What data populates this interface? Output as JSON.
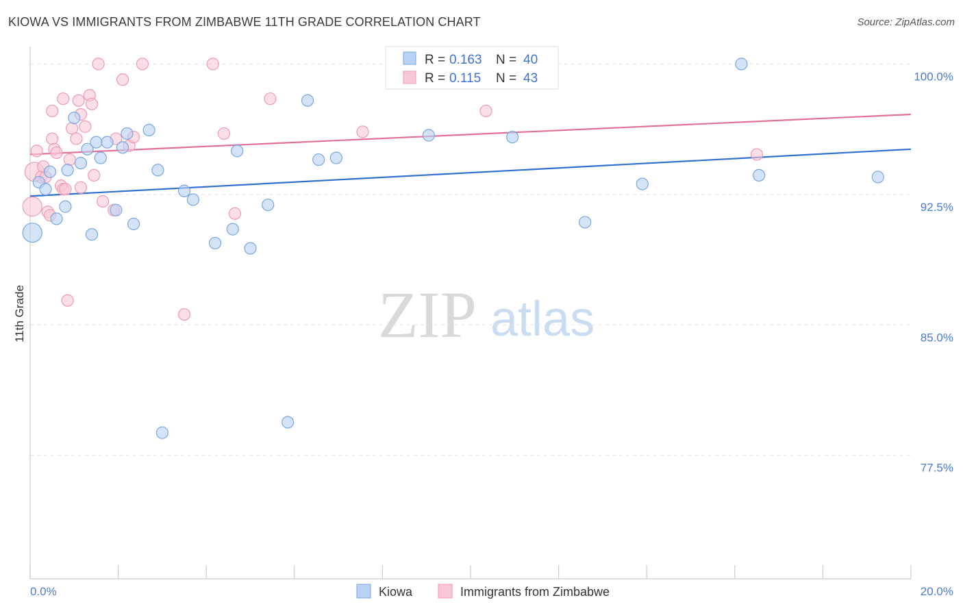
{
  "header": {
    "title": "KIOWA VS IMMIGRANTS FROM ZIMBABWE 11TH GRADE CORRELATION CHART",
    "source": "Source: ZipAtlas.com"
  },
  "watermark": {
    "zip": "ZIP",
    "atlas": "atlas"
  },
  "colors": {
    "kiowa_fill": "#b9d1f2",
    "kiowa_stroke": "#7aa6e0",
    "kiowa_line": "#2f6fcf",
    "zim_fill": "#f8c8d6",
    "zim_stroke": "#ee9ab4",
    "zim_line": "#e0709a",
    "tick_label": "#4a7bd0",
    "grid": "#e3e3e3"
  },
  "legend": {
    "rows": [
      {
        "r_label": "R = ",
        "r_value": "0.163",
        "n_label": "N = ",
        "n_value": "40"
      },
      {
        "r_label": "R = ",
        "r_value": "0.115",
        "n_label": "N = ",
        "n_value": "43"
      }
    ]
  },
  "chart_data": {
    "type": "scatter",
    "title": "KIOWA VS IMMIGRANTS FROM ZIMBABWE 11TH GRADE CORRELATION CHART",
    "xlabel": "",
    "ylabel": "11th Grade",
    "xlim": [
      0,
      20
    ],
    "ylim": [
      70.4,
      101.0
    ],
    "x_tick_labels": [
      "0.0%",
      "20.0%"
    ],
    "y_ticks": [
      100.0,
      92.5,
      85.0,
      77.5
    ],
    "y_tick_labels": [
      "100.0%",
      "92.5%",
      "85.0%",
      "77.5%"
    ],
    "grid": true,
    "legend_position": "top-center",
    "series": [
      {
        "name": "Kiowa",
        "trend": {
          "x": [
            0,
            20
          ],
          "y": [
            92.4,
            95.1
          ]
        },
        "points": [
          {
            "x": 0.05,
            "y": 90.3
          },
          {
            "x": 0.2,
            "y": 93.2
          },
          {
            "x": 0.35,
            "y": 92.8
          },
          {
            "x": 0.45,
            "y": 93.8
          },
          {
            "x": 0.6,
            "y": 91.1
          },
          {
            "x": 0.8,
            "y": 91.8
          },
          {
            "x": 0.85,
            "y": 93.9
          },
          {
            "x": 1.0,
            "y": 96.9
          },
          {
            "x": 1.15,
            "y": 94.3
          },
          {
            "x": 1.3,
            "y": 95.1
          },
          {
            "x": 1.4,
            "y": 90.2
          },
          {
            "x": 1.5,
            "y": 95.5
          },
          {
            "x": 1.6,
            "y": 94.6
          },
          {
            "x": 1.75,
            "y": 95.5
          },
          {
            "x": 1.95,
            "y": 91.6
          },
          {
            "x": 2.1,
            "y": 95.2
          },
          {
            "x": 2.2,
            "y": 96.0
          },
          {
            "x": 2.35,
            "y": 90.8
          },
          {
            "x": 2.7,
            "y": 96.2
          },
          {
            "x": 2.9,
            "y": 93.9
          },
          {
            "x": 3.0,
            "y": 78.8
          },
          {
            "x": 3.5,
            "y": 92.7
          },
          {
            "x": 3.7,
            "y": 92.2
          },
          {
            "x": 4.2,
            "y": 89.7
          },
          {
            "x": 4.6,
            "y": 90.5
          },
          {
            "x": 4.7,
            "y": 95.0
          },
          {
            "x": 5.0,
            "y": 89.4
          },
          {
            "x": 5.4,
            "y": 91.9
          },
          {
            "x": 5.85,
            "y": 79.4
          },
          {
            "x": 6.3,
            "y": 97.9
          },
          {
            "x": 6.55,
            "y": 94.5
          },
          {
            "x": 6.95,
            "y": 94.6
          },
          {
            "x": 9.05,
            "y": 95.9
          },
          {
            "x": 9.1,
            "y": 100.0
          },
          {
            "x": 10.95,
            "y": 95.8
          },
          {
            "x": 12.6,
            "y": 90.9
          },
          {
            "x": 13.9,
            "y": 93.1
          },
          {
            "x": 16.15,
            "y": 100.0
          },
          {
            "x": 16.55,
            "y": 93.6
          },
          {
            "x": 19.25,
            "y": 93.5
          }
        ]
      },
      {
        "name": "Immigrants from Zimbabwe",
        "trend": {
          "x": [
            0,
            20
          ],
          "y": [
            94.8,
            97.1
          ]
        },
        "points": [
          {
            "x": 0.05,
            "y": 91.8
          },
          {
            "x": 0.1,
            "y": 93.8
          },
          {
            "x": 0.15,
            "y": 95.0
          },
          {
            "x": 0.25,
            "y": 93.5
          },
          {
            "x": 0.35,
            "y": 93.5
          },
          {
            "x": 0.4,
            "y": 91.5
          },
          {
            "x": 0.45,
            "y": 91.3
          },
          {
            "x": 0.5,
            "y": 95.7
          },
          {
            "x": 0.5,
            "y": 97.3
          },
          {
            "x": 0.55,
            "y": 95.1
          },
          {
            "x": 0.7,
            "y": 93.0
          },
          {
            "x": 0.75,
            "y": 98.0
          },
          {
            "x": 0.75,
            "y": 92.8
          },
          {
            "x": 0.8,
            "y": 92.8
          },
          {
            "x": 0.85,
            "y": 86.4
          },
          {
            "x": 0.9,
            "y": 94.5
          },
          {
            "x": 0.95,
            "y": 96.3
          },
          {
            "x": 1.05,
            "y": 95.7
          },
          {
            "x": 1.1,
            "y": 97.9
          },
          {
            "x": 1.15,
            "y": 97.1
          },
          {
            "x": 1.15,
            "y": 92.9
          },
          {
            "x": 1.25,
            "y": 96.4
          },
          {
            "x": 1.35,
            "y": 98.2
          },
          {
            "x": 1.4,
            "y": 97.7
          },
          {
            "x": 1.45,
            "y": 93.6
          },
          {
            "x": 1.55,
            "y": 100.0
          },
          {
            "x": 1.65,
            "y": 92.1
          },
          {
            "x": 1.9,
            "y": 91.6
          },
          {
            "x": 1.95,
            "y": 95.7
          },
          {
            "x": 2.1,
            "y": 99.1
          },
          {
            "x": 2.25,
            "y": 95.3
          },
          {
            "x": 2.35,
            "y": 95.8
          },
          {
            "x": 2.55,
            "y": 100.0
          },
          {
            "x": 3.5,
            "y": 85.6
          },
          {
            "x": 4.15,
            "y": 100.0
          },
          {
            "x": 4.4,
            "y": 96.0
          },
          {
            "x": 4.65,
            "y": 91.4
          },
          {
            "x": 5.45,
            "y": 98.0
          },
          {
            "x": 7.55,
            "y": 96.1
          },
          {
            "x": 10.35,
            "y": 97.3
          },
          {
            "x": 16.5,
            "y": 94.8
          },
          {
            "x": 0.6,
            "y": 94.9
          },
          {
            "x": 0.3,
            "y": 94.1
          }
        ]
      }
    ]
  }
}
